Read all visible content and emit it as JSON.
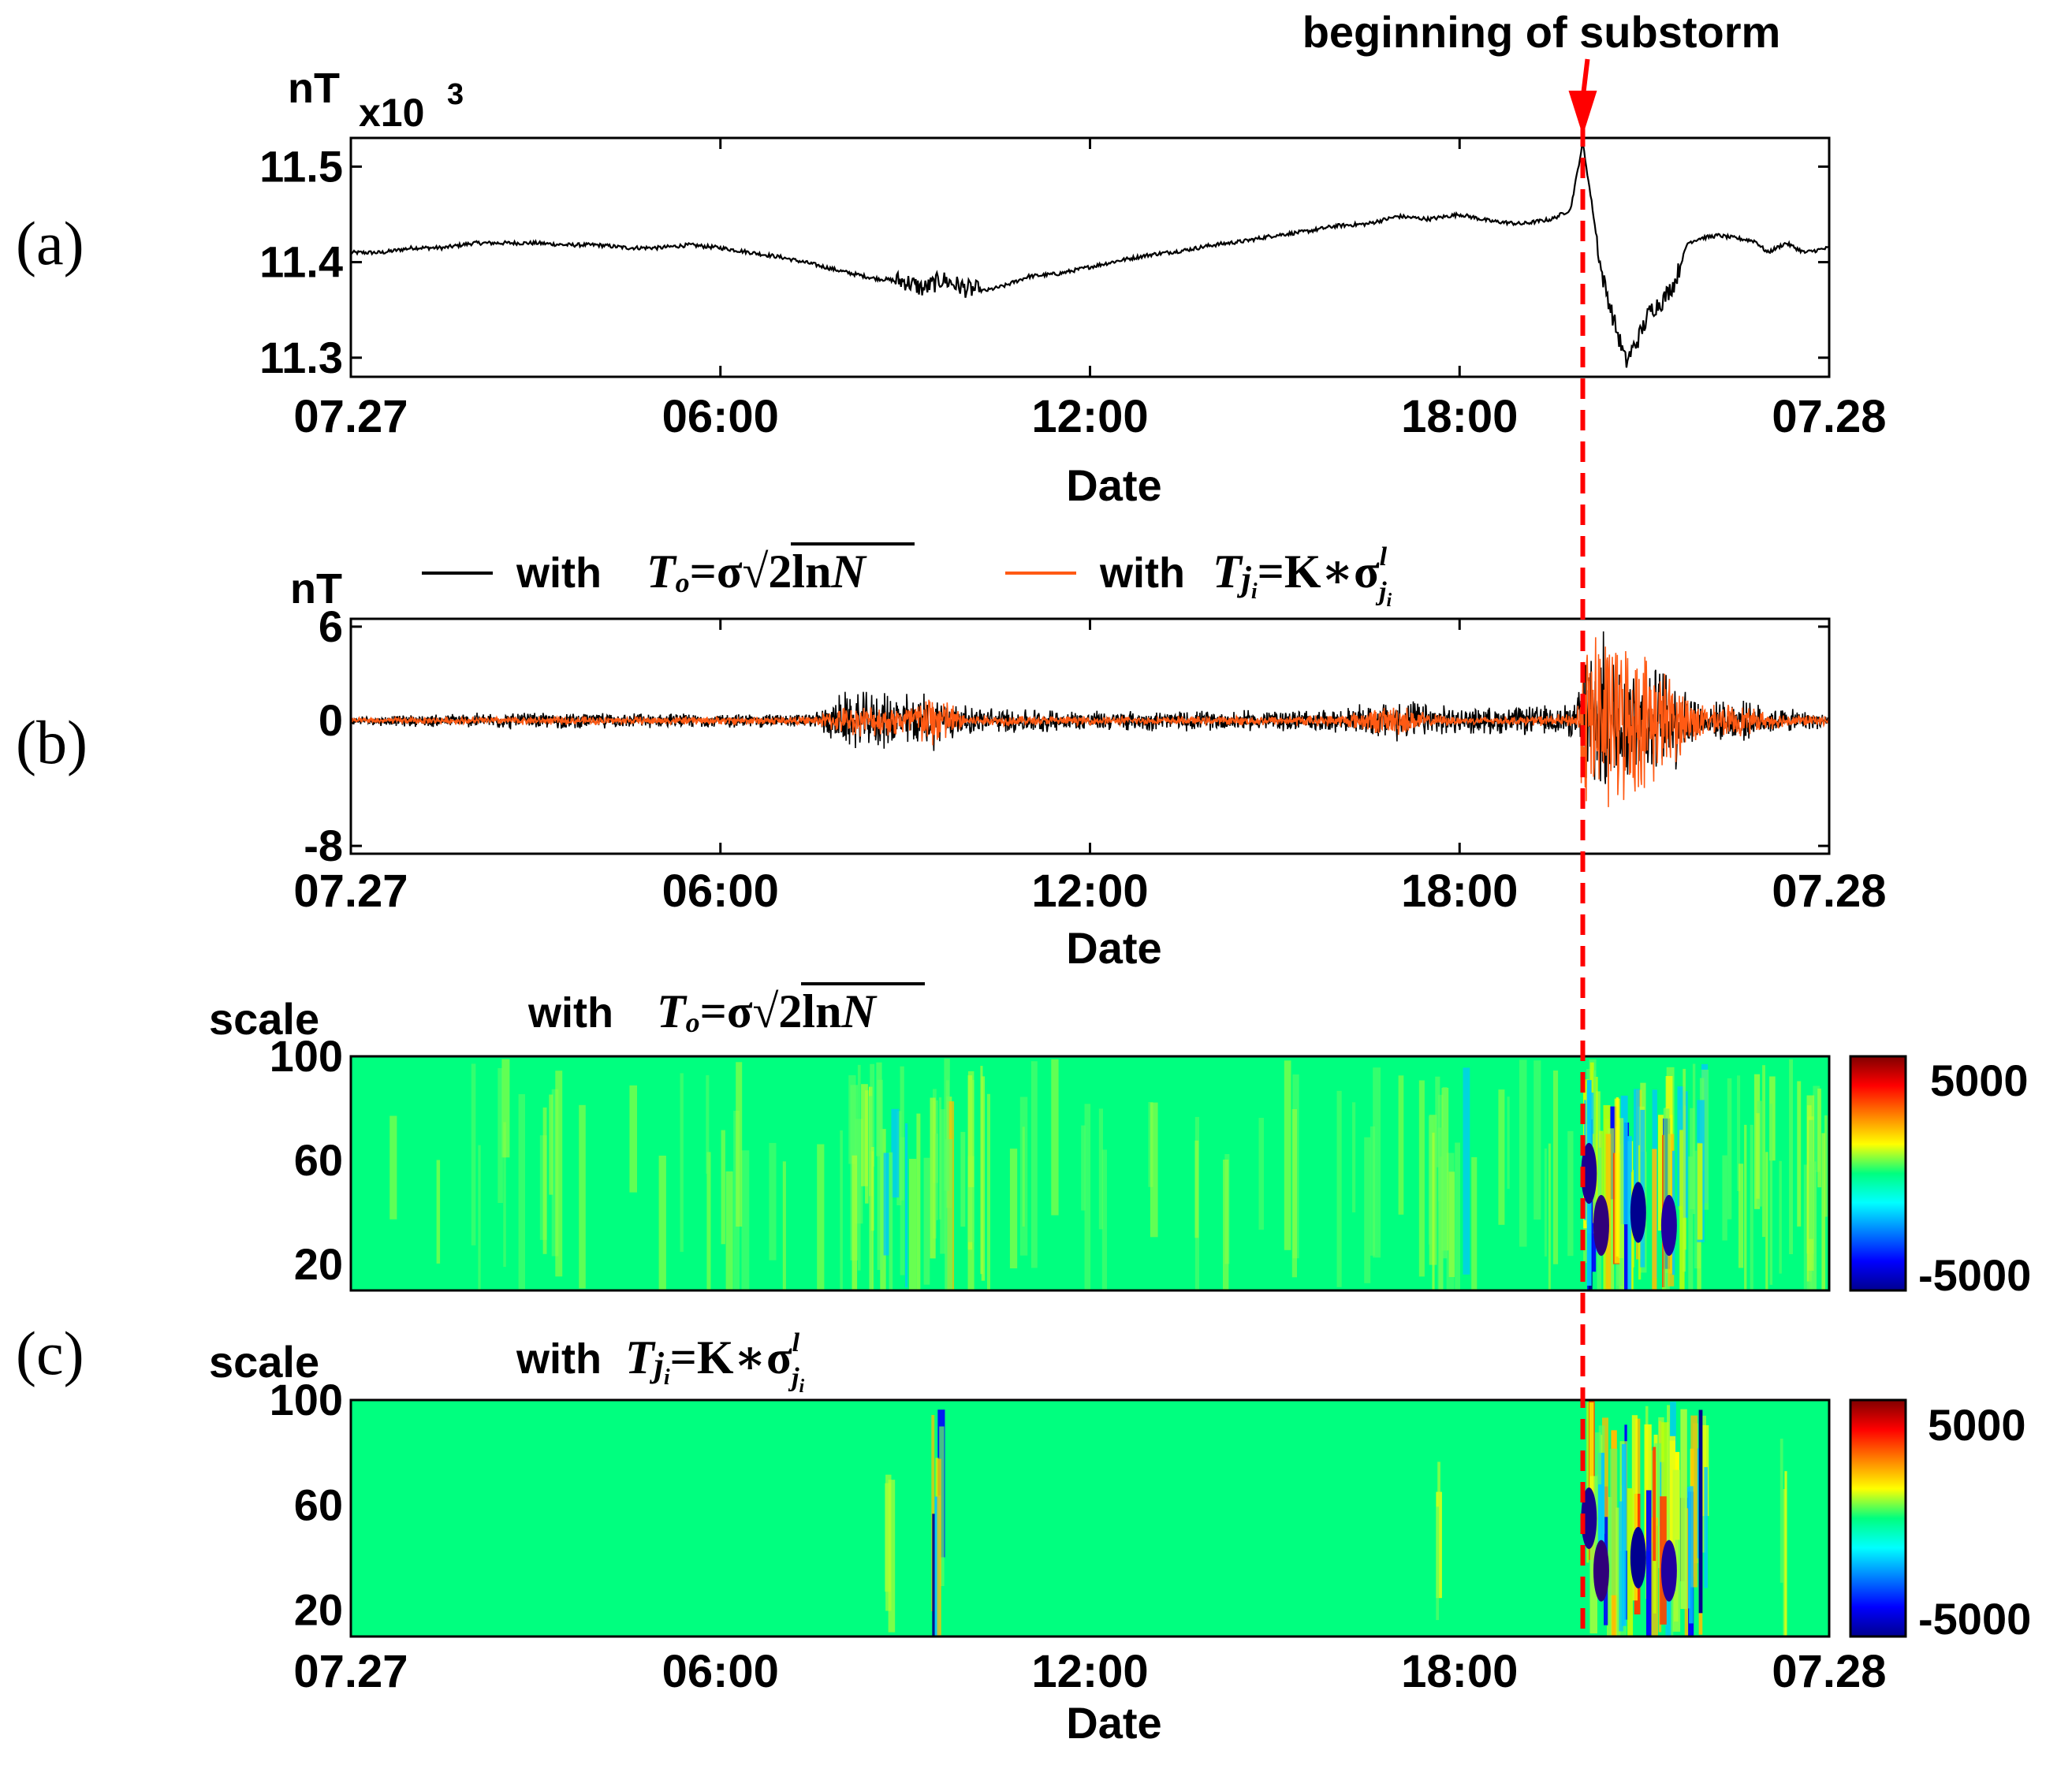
{
  "annotation": {
    "substorm_label": "beginning of substorm",
    "substorm_time_hours": 20.0
  },
  "panels": {
    "a": {
      "letter": "(a)",
      "unit": "nT",
      "multiplier_prefix": "x10",
      "multiplier_exp": "3",
      "xlabel": "Date"
    },
    "b": {
      "letter": "(b)",
      "unit": "nT",
      "xlabel": "Date"
    },
    "c": {
      "letter": "(c)",
      "xlabel": "Date",
      "ylabel_top": "scale",
      "ylabel_bottom": "scale"
    }
  },
  "legend": {
    "with": "with",
    "eq1": {
      "lhs": "T",
      "lhs_sub": "o",
      "eq": "=σ",
      "sqrt": "√",
      "body": "2ln",
      "var": "N"
    },
    "eq2": {
      "lhs": "T",
      "lhs_sub": "j",
      "lhs_subsub": "i",
      "eq": "=K∗σ",
      "sup": "l",
      "sub": "j",
      "subsub": "i"
    }
  },
  "colors": {
    "series1": "#000000",
    "series2": "#ff5a14",
    "marker": "#ff0000",
    "background_field": "#00ff7f"
  },
  "chart_data": [
    {
      "type": "line",
      "panel": "a",
      "ylabel": "nT x10^3",
      "xlabel": "Date",
      "xlim": [
        0,
        24
      ],
      "ylim": [
        11.28,
        11.53
      ],
      "xticks": [
        0,
        6,
        12,
        18,
        24
      ],
      "xticklabels": [
        "07.27",
        "06:00",
        "12:00",
        "18:00",
        "07.28"
      ],
      "yticks": [
        11.3,
        11.4,
        11.5
      ],
      "yticklabels": [
        "11.3",
        "11.4",
        "11.5"
      ],
      "series": [
        {
          "x": [
            0,
            0.5,
            1,
            1.5,
            2,
            2.5,
            3,
            3.5,
            4,
            4.5,
            5,
            5.5,
            6,
            6.5,
            7,
            7.5,
            8,
            8.5,
            9,
            9.3,
            9.6,
            10,
            10.3,
            10.6,
            11,
            11.5,
            12,
            12.5,
            13,
            13.5,
            14,
            14.5,
            15,
            15.5,
            16,
            16.5,
            17,
            17.5,
            18,
            18.5,
            19,
            19.5,
            19.8,
            20,
            20.15,
            20.3,
            20.5,
            20.7,
            20.9,
            21.1,
            21.3,
            21.5,
            21.7,
            21.9,
            22.2,
            22.5,
            22.8,
            23,
            23.3,
            23.6,
            24
          ],
          "y": [
            11.41,
            11.41,
            11.415,
            11.415,
            11.42,
            11.42,
            11.42,
            11.418,
            11.418,
            11.415,
            11.415,
            11.418,
            11.415,
            11.41,
            11.405,
            11.398,
            11.39,
            11.383,
            11.38,
            11.372,
            11.382,
            11.372,
            11.37,
            11.375,
            11.385,
            11.388,
            11.395,
            11.402,
            11.408,
            11.412,
            11.418,
            11.422,
            11.428,
            11.432,
            11.438,
            11.44,
            11.448,
            11.445,
            11.45,
            11.443,
            11.44,
            11.445,
            11.455,
            11.525,
            11.46,
            11.39,
            11.34,
            11.295,
            11.32,
            11.35,
            11.36,
            11.38,
            11.42,
            11.425,
            11.428,
            11.425,
            11.422,
            11.41,
            11.42,
            11.41,
            11.415
          ]
        }
      ]
    },
    {
      "type": "line",
      "panel": "b",
      "ylabel": "nT",
      "xlabel": "Date",
      "xlim": [
        0,
        24
      ],
      "ylim": [
        -8.5,
        6.5
      ],
      "xticks": [
        0,
        6,
        12,
        18,
        24
      ],
      "xticklabels": [
        "07.27",
        "06:00",
        "12:00",
        "18:00",
        "07.28"
      ],
      "yticks": [
        -8,
        0,
        6
      ],
      "yticklabels": [
        "-8",
        "0",
        "6"
      ],
      "series": [
        {
          "name": "with T_o=σ√(2lnN)",
          "x": [
            0,
            2.5,
            5,
            7.5,
            8,
            9,
            9.5,
            10,
            12,
            14,
            16,
            17,
            17.5,
            18,
            19,
            19.9,
            20,
            20.3,
            20.6,
            21,
            21.5,
            22,
            22.5,
            23,
            24
          ],
          "amplitude": [
            0.3,
            0.6,
            0.5,
            0.5,
            2.0,
            2.0,
            2.0,
            1.0,
            0.7,
            0.7,
            0.8,
            1.5,
            1.2,
            0.9,
            1.0,
            1.2,
            5.5,
            6.0,
            5.0,
            4.0,
            3.5,
            1.2,
            1.5,
            1.0,
            0.5
          ]
        },
        {
          "name": "with T_ji=K∗σ^l_ji",
          "x": [
            0,
            2.5,
            5,
            7.5,
            8,
            9,
            9.5,
            10,
            12,
            14,
            16,
            17,
            17.5,
            18,
            19,
            19.9,
            20,
            20.3,
            20.6,
            21,
            21.5,
            22,
            22.5,
            23,
            24
          ],
          "amplitude": [
            0.2,
            0.3,
            0.3,
            0.3,
            1.0,
            1.2,
            2.2,
            0.4,
            0.3,
            0.3,
            0.4,
            1.2,
            0.5,
            0.3,
            0.3,
            0.5,
            6.0,
            7.0,
            6.0,
            5.0,
            3.0,
            1.0,
            1.2,
            0.6,
            0.3
          ]
        }
      ]
    },
    {
      "type": "heatmap",
      "panel": "c-top",
      "title": "with T_o=σ√(2lnN)",
      "ylabel": "scale",
      "xlabel": "",
      "xlim": [
        0,
        24
      ],
      "ylim": [
        10,
        100
      ],
      "xticks": [],
      "yticks": [
        20,
        60,
        100
      ],
      "yticklabels": [
        "20",
        "60",
        "100"
      ],
      "colorbar": {
        "min": -5000,
        "max": 5000,
        "ticklabels": [
          "5000",
          "-5000"
        ]
      }
    },
    {
      "type": "heatmap",
      "panel": "c-bottom",
      "title": "with T_ji=K∗σ^l_ji",
      "ylabel": "scale",
      "xlabel": "Date",
      "xlim": [
        0,
        24
      ],
      "ylim": [
        10,
        100
      ],
      "xticks": [
        0,
        6,
        12,
        18,
        24
      ],
      "xticklabels": [
        "07.27",
        "06:00",
        "12:00",
        "18:00",
        "07.28"
      ],
      "yticks": [
        20,
        60,
        100
      ],
      "yticklabels": [
        "20",
        "60",
        "100"
      ],
      "colorbar": {
        "min": -5000,
        "max": 5000,
        "ticklabels": [
          "5000",
          "-5000"
        ]
      }
    }
  ]
}
